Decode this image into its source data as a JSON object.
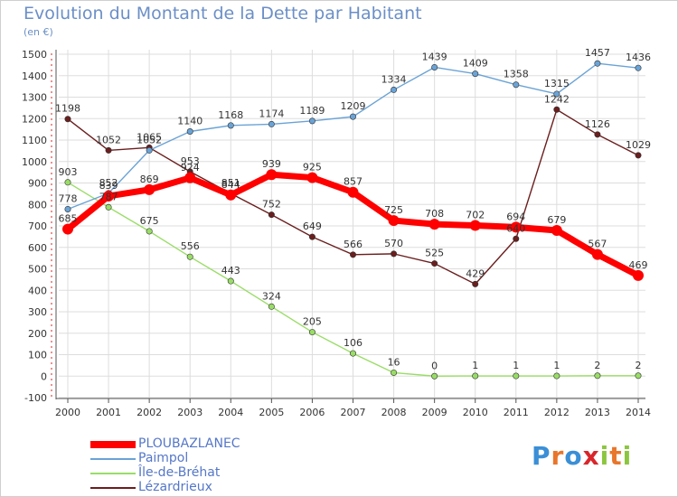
{
  "header": {
    "title": "Evolution du Montant de la Dette par Habitant",
    "unit": "(en €)"
  },
  "brand": {
    "text": "Proxiti",
    "letter_colors": [
      "#3a8fd6",
      "#e8762b",
      "#3a8fd6",
      "#d9262b",
      "#8cc63f",
      "#e8762b",
      "#8cc63f"
    ]
  },
  "colors": {
    "PLOUBAZLANEC": "#ff0000",
    "Paimpol": "#6aa3d6",
    "Île-de-Bréhat": "#99dd66",
    "Lézardrieux": "#6b1e1e",
    "grid": "#dddddd",
    "axis": "#555555"
  },
  "chart_data": {
    "type": "line",
    "title": "Evolution du Montant de la Dette par Habitant",
    "subtitle": "(en €)",
    "categories": [
      "2000",
      "2001",
      "2002",
      "2003",
      "2004",
      "2005",
      "2006",
      "2007",
      "2008",
      "2009",
      "2010",
      "2011",
      "2012",
      "2013",
      "2014"
    ],
    "ylim": [
      -100,
      1500
    ],
    "yticks": [
      -100,
      0,
      100,
      200,
      300,
      400,
      500,
      600,
      700,
      800,
      900,
      1000,
      1100,
      1200,
      1300,
      1400,
      1500
    ],
    "grid": true,
    "legend_position": "bottom-left",
    "series": [
      {
        "name": "PLOUBAZLANEC",
        "values": [
          685,
          839,
          869,
          924,
          844,
          939,
          925,
          857,
          725,
          708,
          702,
          694,
          679,
          567,
          469
        ]
      },
      {
        "name": "Paimpol",
        "values": [
          778,
          852,
          1052,
          1140,
          1168,
          1174,
          1189,
          1209,
          1334,
          1439,
          1409,
          1358,
          1315,
          1457,
          1436
        ]
      },
      {
        "name": "Île-de-Bréhat",
        "values": [
          903,
          787,
          675,
          556,
          443,
          324,
          205,
          106,
          16,
          0,
          1,
          1,
          1,
          2,
          2
        ]
      },
      {
        "name": "Lézardrieux",
        "values": [
          1198,
          1052,
          1065,
          953,
          851,
          752,
          649,
          566,
          570,
          525,
          429,
          640,
          1242,
          1126,
          1029
        ]
      }
    ]
  }
}
